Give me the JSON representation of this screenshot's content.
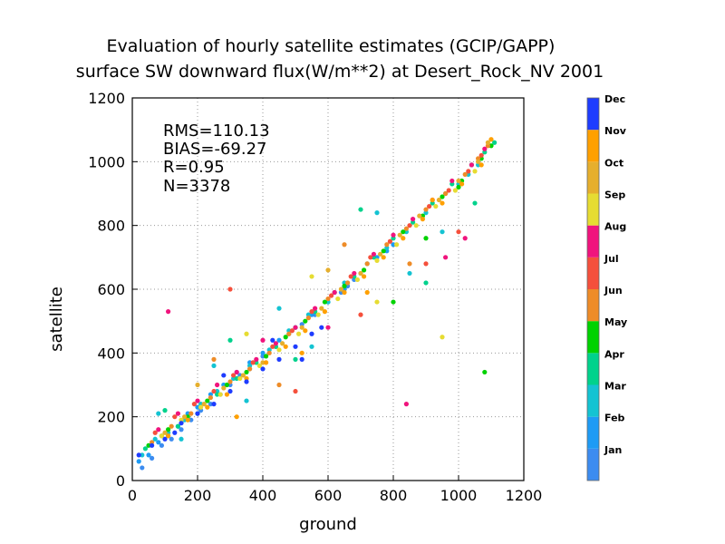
{
  "chart_data": {
    "type": "scatter",
    "title": "Evaluation of hourly satellite estimates (GCIP/GAPP)",
    "subtitle": "surface SW downward flux(W/m**2) at Desert_Rock_NV 2001",
    "xlabel": "ground",
    "ylabel": "satellite",
    "xlim": [
      0,
      1200
    ],
    "ylim": [
      0,
      1200
    ],
    "xticks": [
      "0",
      "200",
      "400",
      "600",
      "800",
      "1000",
      "1200"
    ],
    "yticks": [
      "0",
      "200",
      "400",
      "600",
      "800",
      "1000",
      "1200"
    ],
    "grid": true,
    "stats": [
      "RMS=110.13",
      "BIAS=-69.27",
      "R=0.95",
      "N=3378"
    ],
    "legend_placement": "right colorbar",
    "colorbar": [
      {
        "label": "Jan",
        "color": "#3c8cf0"
      },
      {
        "label": "Feb",
        "color": "#1e9bf5"
      },
      {
        "label": "Mar",
        "color": "#14c3d2"
      },
      {
        "label": "Apr",
        "color": "#00d28c"
      },
      {
        "label": "May",
        "color": "#00d200"
      },
      {
        "label": "Jun",
        "color": "#ee8c28"
      },
      {
        "label": "Jul",
        "color": "#f5503c"
      },
      {
        "label": "Aug",
        "color": "#f0147d"
      },
      {
        "label": "Sep",
        "color": "#e6dc32"
      },
      {
        "label": "Oct",
        "color": "#e6af2d"
      },
      {
        "label": "Nov",
        "color": "#ffa000"
      },
      {
        "label": "Dec",
        "color": "#1e3cff"
      }
    ],
    "series": [
      {
        "month": "Jan",
        "x": [
          30,
          60,
          90,
          120,
          150,
          180,
          210,
          240,
          270,
          300,
          330,
          360,
          400,
          440,
          480,
          520,
          560,
          600,
          640,
          660,
          680
        ],
        "y": [
          40,
          70,
          110,
          130,
          160,
          190,
          220,
          240,
          270,
          300,
          330,
          350,
          390,
          420,
          460,
          490,
          520,
          560,
          590,
          610,
          630
        ]
      },
      {
        "month": "Feb",
        "x": [
          20,
          50,
          80,
          110,
          140,
          170,
          200,
          240,
          280,
          320,
          360,
          400,
          450,
          500,
          550,
          600,
          650,
          700,
          750,
          780,
          800
        ],
        "y": [
          60,
          80,
          120,
          140,
          170,
          210,
          230,
          270,
          300,
          340,
          370,
          400,
          440,
          480,
          520,
          560,
          600,
          650,
          700,
          720,
          740
        ]
      },
      {
        "month": "Mar",
        "x": [
          30,
          70,
          110,
          160,
          210,
          260,
          310,
          360,
          420,
          480,
          540,
          600,
          660,
          720,
          780,
          840,
          900,
          960,
          1000,
          1030,
          1060,
          80,
          150,
          250,
          350,
          450,
          550,
          650,
          750,
          850,
          950
        ],
        "y": [
          80,
          130,
          150,
          190,
          240,
          280,
          320,
          360,
          410,
          470,
          520,
          560,
          620,
          680,
          730,
          780,
          840,
          900,
          930,
          960,
          990,
          210,
          130,
          360,
          250,
          540,
          420,
          620,
          840,
          650,
          780
        ]
      },
      {
        "month": "Apr",
        "x": [
          40,
          90,
          140,
          200,
          260,
          320,
          380,
          440,
          500,
          560,
          620,
          680,
          740,
          800,
          860,
          920,
          980,
          1040,
          1080,
          1110,
          100,
          300,
          500,
          700,
          900,
          1050
        ],
        "y": [
          100,
          140,
          170,
          210,
          270,
          320,
          370,
          420,
          480,
          530,
          590,
          640,
          700,
          760,
          810,
          870,
          930,
          990,
          1030,
          1060,
          220,
          440,
          380,
          850,
          620,
          870
        ]
      },
      {
        "month": "May",
        "x": [
          50,
          110,
          170,
          230,
          290,
          350,
          410,
          470,
          530,
          590,
          650,
          710,
          770,
          830,
          890,
          950,
          1010,
          1070,
          1100,
          1000,
          900,
          800,
          1080
        ],
        "y": [
          110,
          160,
          200,
          250,
          300,
          340,
          390,
          450,
          500,
          560,
          610,
          660,
          720,
          780,
          830,
          890,
          940,
          1010,
          1050,
          920,
          760,
          560,
          340
        ]
      },
      {
        "month": "Jun",
        "x": [
          60,
          120,
          180,
          240,
          300,
          360,
          420,
          480,
          540,
          600,
          660,
          720,
          780,
          840,
          900,
          960,
          1020,
          1060,
          1090,
          250,
          450,
          650,
          850
        ],
        "y": [
          120,
          170,
          210,
          260,
          310,
          350,
          400,
          460,
          510,
          570,
          620,
          680,
          740,
          790,
          850,
          900,
          960,
          1010,
          1050,
          380,
          300,
          740,
          680
        ]
      },
      {
        "month": "Jul",
        "x": [
          70,
          130,
          190,
          250,
          310,
          370,
          430,
          490,
          550,
          610,
          670,
          730,
          790,
          850,
          910,
          970,
          1030,
          1070,
          300,
          500,
          700,
          900,
          1000
        ],
        "y": [
          150,
          200,
          240,
          280,
          330,
          370,
          420,
          470,
          530,
          580,
          640,
          700,
          750,
          800,
          860,
          910,
          970,
          1020,
          600,
          280,
          520,
          680,
          780
        ]
      },
      {
        "month": "Aug",
        "x": [
          80,
          140,
          200,
          260,
          320,
          380,
          440,
          500,
          560,
          620,
          680,
          740,
          800,
          860,
          920,
          980,
          1040,
          1080,
          110,
          400,
          600,
          840,
          960,
          1020
        ],
        "y": [
          160,
          210,
          250,
          300,
          340,
          380,
          430,
          480,
          540,
          590,
          650,
          710,
          770,
          820,
          880,
          940,
          990,
          1040,
          530,
          440,
          480,
          240,
          700,
          760
        ]
      },
      {
        "month": "Sep",
        "x": [
          90,
          150,
          210,
          270,
          330,
          390,
          450,
          510,
          570,
          630,
          690,
          750,
          810,
          870,
          930,
          990,
          1050,
          350,
          550,
          750,
          950
        ],
        "y": [
          140,
          190,
          230,
          270,
          320,
          360,
          410,
          460,
          520,
          570,
          630,
          690,
          740,
          800,
          860,
          910,
          970,
          460,
          640,
          560,
          450
        ]
      },
      {
        "month": "Oct",
        "x": [
          100,
          160,
          220,
          280,
          340,
          400,
          460,
          520,
          580,
          640,
          700,
          760,
          820,
          880,
          940,
          1000,
          1060,
          1090,
          200,
          600
        ],
        "y": [
          150,
          200,
          240,
          290,
          330,
          370,
          430,
          480,
          540,
          600,
          650,
          710,
          770,
          830,
          880,
          940,
          1000,
          1060,
          300,
          660
        ]
      },
      {
        "month": "Nov",
        "x": [
          110,
          170,
          230,
          290,
          350,
          410,
          470,
          530,
          590,
          650,
          710,
          770,
          830,
          890,
          950,
          1010,
          1070,
          1100,
          320,
          520,
          720,
          920
        ],
        "y": [
          140,
          190,
          230,
          270,
          320,
          370,
          420,
          470,
          530,
          590,
          640,
          700,
          760,
          820,
          870,
          930,
          990,
          1070,
          200,
          400,
          590,
          880
        ]
      },
      {
        "month": "Dec",
        "x": [
          20,
          60,
          100,
          150,
          200,
          250,
          300,
          350,
          400,
          450,
          500,
          550,
          580,
          130,
          280,
          430,
          520
        ],
        "y": [
          80,
          110,
          130,
          180,
          210,
          240,
          280,
          310,
          350,
          380,
          420,
          460,
          480,
          150,
          330,
          440,
          380
        ]
      }
    ]
  }
}
